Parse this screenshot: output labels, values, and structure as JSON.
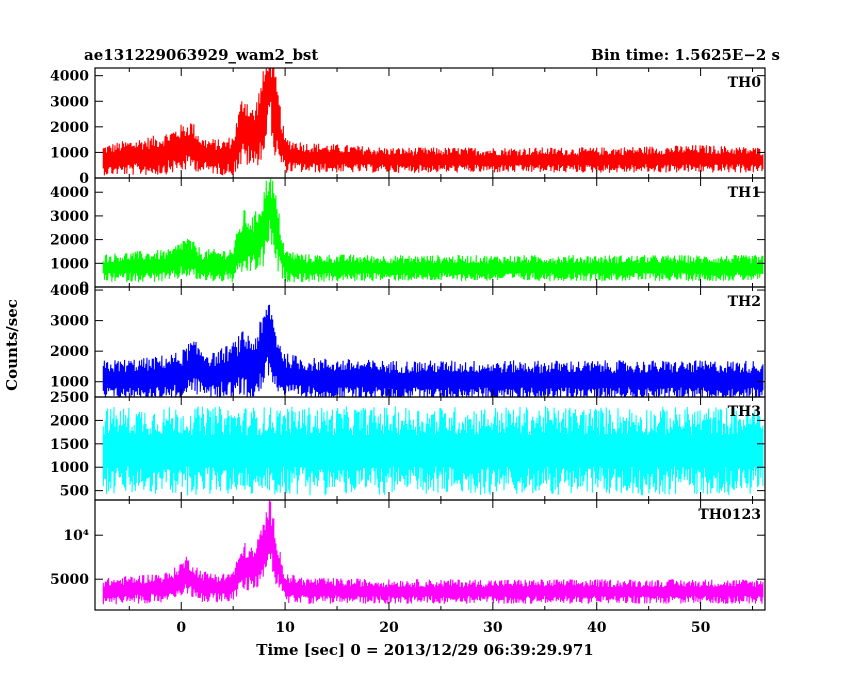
{
  "header": {
    "left": "ae131229063929_wam2_bst",
    "right": "Bin time: 1.5625E−2 s"
  },
  "chart_data": {
    "type": "line",
    "xlabel": "Time [sec] 0 = 2013/12/29 06:39:29.971",
    "ylabel": "Counts/sec",
    "xlim": [
      -8.3,
      56.2
    ],
    "data_x_range": [
      -7.5,
      56.0
    ],
    "x_ticks": [
      0,
      10,
      20,
      30,
      40,
      50
    ],
    "x_tick_labels": [
      "0",
      "10",
      "20",
      "30",
      "40",
      "50"
    ],
    "panels": [
      {
        "name": "TH0",
        "color": "#ff0000",
        "ylim": [
          0,
          4300
        ],
        "y_ticks": [
          0,
          1000,
          2000,
          3000,
          4000
        ],
        "y_tick_labels": [
          "0",
          "1000",
          "2000",
          "3000",
          "4000"
        ],
        "x": [
          -7.5,
          -5,
          -2,
          -0.5,
          1,
          2,
          4,
          5,
          6,
          7,
          8,
          8.5,
          9,
          10,
          12,
          20,
          30,
          40,
          50,
          56
        ],
        "y": [
          700,
          800,
          900,
          1100,
          1300,
          900,
          800,
          900,
          2000,
          1500,
          2600,
          3800,
          2500,
          900,
          800,
          700,
          700,
          700,
          750,
          700
        ],
        "noise": [
          600,
          700,
          800,
          900,
          1000,
          700,
          700,
          800,
          1500,
          1200,
          1800,
          1500,
          1800,
          700,
          600,
          500,
          500,
          500,
          550,
          500
        ]
      },
      {
        "name": "TH1",
        "color": "#00ff00",
        "ylim": [
          0,
          4600
        ],
        "y_ticks": [
          0,
          1000,
          2000,
          3000,
          4000
        ],
        "y_tick_labels": [
          "0",
          "1000",
          "2000",
          "3000",
          "4000"
        ],
        "x": [
          -7.5,
          -5,
          -1,
          0.5,
          2,
          4,
          5,
          6,
          7,
          8,
          8.5,
          9,
          10,
          12,
          20,
          30,
          40,
          50,
          56
        ],
        "y": [
          800,
          850,
          900,
          1300,
          900,
          900,
          950,
          1900,
          1800,
          2500,
          3600,
          2500,
          900,
          800,
          800,
          800,
          800,
          800,
          800
        ],
        "noise": [
          600,
          650,
          700,
          900,
          700,
          700,
          800,
          1400,
          1200,
          1800,
          1500,
          1800,
          700,
          600,
          550,
          550,
          550,
          550,
          550
        ]
      },
      {
        "name": "TH2",
        "color": "#0000ff",
        "ylim": [
          500,
          4100
        ],
        "y_ticks": [
          1000,
          2000,
          3000,
          4000
        ],
        "y_tick_labels": [
          "1000",
          "2000",
          "3000",
          "4000"
        ],
        "x": [
          -7.5,
          -3,
          0,
          1,
          3,
          5,
          6,
          7,
          8,
          8.5,
          9,
          10,
          12,
          20,
          30,
          40,
          50,
          56
        ],
        "y": [
          1050,
          1100,
          1200,
          1500,
          1200,
          1400,
          1600,
          1500,
          2000,
          2600,
          1800,
          1200,
          1100,
          1050,
          1050,
          1050,
          1050,
          1050
        ],
        "noise": [
          650,
          700,
          800,
          900,
          750,
          900,
          1100,
          1000,
          1300,
          1300,
          1100,
          750,
          700,
          650,
          650,
          650,
          650,
          650
        ]
      },
      {
        "name": "TH3",
        "color": "#00ffff",
        "ylim": [
          300,
          2500
        ],
        "y_ticks": [
          500,
          1000,
          1500,
          2000,
          2500
        ],
        "y_tick_labels": [
          "500",
          "1000",
          "1500",
          "2000",
          "2500"
        ],
        "x": [
          -7.5,
          10,
          20,
          30,
          40,
          50,
          56
        ],
        "y": [
          1350,
          1350,
          1350,
          1350,
          1350,
          1350,
          1350
        ],
        "noise": [
          950,
          950,
          950,
          950,
          950,
          950,
          950
        ]
      },
      {
        "name": "TH0123",
        "color": "#ff00ff",
        "ylim": [
          1500,
          14000
        ],
        "y_ticks": [
          5000,
          10000
        ],
        "y_tick_labels": [
          "5000",
          "10⁴"
        ],
        "x": [
          -7.5,
          -5,
          -1,
          0.5,
          2,
          4,
          5,
          6,
          7,
          8,
          8.5,
          9,
          10,
          12,
          20,
          30,
          40,
          50,
          56
        ],
        "y": [
          3600,
          3800,
          4100,
          5500,
          4200,
          4000,
          4300,
          6500,
          6000,
          8500,
          11000,
          8000,
          4000,
          3700,
          3600,
          3600,
          3600,
          3600,
          3600
        ],
        "noise": [
          1500,
          1600,
          1800,
          2200,
          1800,
          1700,
          1800,
          2800,
          2500,
          3500,
          3500,
          3500,
          1700,
          1500,
          1400,
          1400,
          1400,
          1400,
          1400
        ]
      }
    ]
  }
}
